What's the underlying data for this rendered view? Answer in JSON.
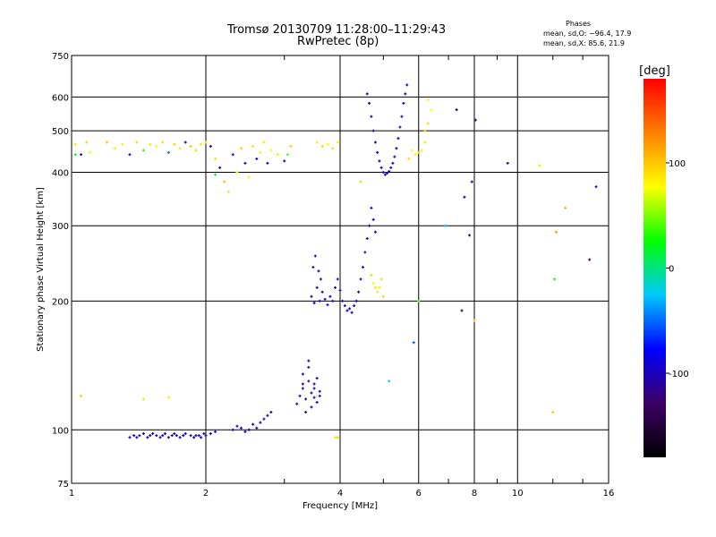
{
  "chart_data": {
    "type": "scatter",
    "title": "Tromsø 20130709 11:28:00–11:29:43",
    "subtitle": "RwPretec (8p)",
    "xlabel": "Frequency [MHz]",
    "ylabel": "Stationary phase Virtual Height [km]",
    "xscale": "log",
    "yscale": "log",
    "xlim": [
      1,
      16
    ],
    "ylim": [
      75,
      750
    ],
    "xticks": [
      1,
      2,
      4,
      6,
      8,
      10,
      16
    ],
    "xtick_labels": [
      "1",
      "2",
      "4",
      "6",
      "8",
      "10",
      "16"
    ],
    "yticks": [
      75,
      100,
      200,
      300,
      400,
      500,
      600,
      750
    ],
    "ytick_labels": [
      "75",
      "100",
      "200",
      "300",
      "400",
      "500",
      "600",
      "750"
    ],
    "grid": true,
    "colorbar": {
      "label": "[deg]",
      "range": [
        -180,
        180
      ],
      "ticks": [
        100,
        0,
        -100
      ],
      "tick_labels": [
        "100",
        "0",
        "-100"
      ],
      "stops": [
        "#000000",
        "#3d0066",
        "#0000ff",
        "#00c8ff",
        "#00ff00",
        "#ffff00",
        "#ff8000",
        "#ff0000"
      ]
    },
    "phases_box": {
      "title": "Phases",
      "line_O": "mean, sd,O: −96.4, 17.9",
      "line_X": "mean, sd,X:  85.6, 21.9"
    },
    "series": [
      {
        "f": [
          1.35,
          1.38,
          1.4,
          1.42,
          1.45,
          1.48,
          1.5,
          1.52,
          1.55,
          1.58,
          1.6,
          1.62,
          1.65,
          1.68,
          1.7,
          1.72,
          1.75,
          1.78,
          1.8,
          1.85,
          1.88,
          1.9,
          1.93,
          1.95,
          1.98,
          2.0,
          2.05,
          2.1
        ],
        "h": [
          96,
          97,
          96,
          97,
          98,
          96,
          97,
          98,
          97,
          96,
          97,
          98,
          96,
          97,
          98,
          97,
          96,
          97,
          98,
          97,
          96,
          97,
          97,
          96,
          98,
          97,
          98,
          99
        ],
        "p": [
          -95,
          -100,
          -90,
          -105,
          -98,
          -92,
          -110,
          -96,
          -94,
          -102,
          -99,
          -88,
          -97,
          -103,
          -95,
          -100,
          -93,
          -106,
          -98,
          -101,
          -94,
          -99,
          -97,
          -92,
          -104,
          -96,
          -98,
          -90
        ]
      },
      {
        "f": [
          2.3,
          2.35,
          2.4,
          2.45,
          2.5,
          2.55,
          2.6,
          2.65,
          2.7,
          2.75,
          2.8
        ],
        "h": [
          100,
          102,
          101,
          99,
          100,
          103,
          101,
          104,
          106,
          108,
          110
        ],
        "p": [
          -100,
          -95,
          -105,
          -98,
          -102,
          -94,
          -99,
          -97,
          -101,
          -96,
          -100
        ]
      },
      {
        "f": [
          3.2,
          3.25,
          3.3,
          3.35,
          3.4,
          3.45,
          3.5,
          3.55,
          3.6,
          3.3,
          3.4,
          3.5,
          3.35,
          3.45,
          3.55,
          3.3,
          3.4,
          3.5,
          3.6
        ],
        "h": [
          115,
          120,
          125,
          118,
          130,
          122,
          128,
          116,
          120,
          135,
          140,
          125,
          110,
          113,
          132,
          128,
          145,
          119,
          123
        ],
        "p": [
          -110,
          -100,
          -95,
          -120,
          -105,
          -98,
          -112,
          -100,
          -95,
          -108,
          -115,
          -100,
          -122,
          -96,
          -104,
          -110,
          -99,
          -106,
          -101
        ]
      },
      {
        "f": [
          3.45,
          3.5,
          3.55,
          3.6,
          3.65,
          3.7,
          3.75,
          3.8,
          3.85,
          3.9,
          3.95,
          4.0,
          4.05,
          4.1,
          4.15,
          4.2,
          4.25,
          4.3,
          4.35,
          4.4,
          4.45,
          4.5,
          4.55,
          4.6,
          4.65,
          4.7,
          4.75,
          4.8
        ],
        "h": [
          205,
          198,
          215,
          200,
          210,
          202,
          196,
          205,
          200,
          215,
          225,
          212,
          200,
          195,
          190,
          192,
          188,
          195,
          200,
          210,
          225,
          240,
          260,
          280,
          300,
          330,
          310,
          290
        ],
        "p": [
          -100,
          -95,
          -110,
          -98,
          -105,
          -92,
          -100,
          -97,
          -102,
          -99,
          -96,
          -104,
          -100,
          -95,
          -98,
          -101,
          -97,
          -103,
          -96,
          -99,
          -100,
          -98,
          -104,
          -97,
          -101,
          -95,
          -99,
          -100
        ]
      },
      {
        "f": [
          3.48,
          3.52,
          3.58,
          3.62
        ],
        "h": [
          240,
          255,
          235,
          225
        ],
        "p": [
          -100,
          -98,
          -102,
          -95
        ]
      },
      {
        "f": [
          4.6,
          4.65,
          4.7,
          4.75,
          4.8,
          4.85,
          4.9,
          4.95,
          5.0,
          5.05,
          5.1,
          5.15,
          5.2,
          5.25,
          5.3,
          5.35,
          5.4,
          5.45,
          5.5,
          5.55,
          5.6,
          5.65
        ],
        "h": [
          610,
          580,
          540,
          500,
          470,
          445,
          425,
          410,
          400,
          395,
          398,
          402,
          410,
          420,
          435,
          455,
          480,
          510,
          540,
          580,
          610,
          640
        ],
        "p": [
          -100,
          -98,
          -102,
          -97,
          -101,
          -95,
          -99,
          -100,
          -98,
          -103,
          -96,
          -100,
          -99,
          -101,
          -97,
          -102,
          -98,
          -100,
          -96,
          -103,
          -99,
          -100
        ]
      },
      {
        "f": [
          4.7,
          4.75,
          4.8,
          4.85,
          4.9,
          4.95,
          5.0
        ],
        "h": [
          230,
          220,
          215,
          210,
          215,
          225,
          205
        ],
        "p": [
          60,
          75,
          90,
          70,
          85,
          65,
          95
        ]
      },
      {
        "f": [
          5.7,
          5.8,
          5.9,
          6.0,
          6.1,
          6.2,
          6.3,
          6.4,
          6.2,
          6.3
        ],
        "h": [
          430,
          450,
          440,
          445,
          450,
          470,
          520,
          560,
          500,
          590
        ],
        "p": [
          90,
          80,
          85,
          95,
          70,
          88,
          92,
          75,
          100,
          85
        ]
      },
      {
        "f": [
          1.02,
          1.05,
          1.08,
          1.1,
          1.2,
          1.25,
          1.3,
          1.35,
          1.4,
          1.45,
          1.5,
          1.55,
          1.6,
          1.65,
          1.7,
          1.75,
          1.8,
          1.85,
          1.9,
          1.95,
          2.0
        ],
        "h": [
          465,
          440,
          470,
          445,
          470,
          455,
          465,
          440,
          470,
          450,
          465,
          460,
          470,
          445,
          465,
          455,
          470,
          460,
          450,
          465,
          470
        ],
        "p": [
          90,
          -100,
          95,
          80,
          100,
          70,
          85,
          -90,
          92,
          30,
          88,
          75,
          90,
          -50,
          95,
          85,
          -105,
          100,
          60,
          88,
          92
        ]
      },
      {
        "f": [
          2.05,
          2.1,
          2.15,
          2.2,
          2.25,
          2.3,
          2.35,
          2.4,
          2.45,
          2.5,
          2.55,
          2.6,
          2.65,
          2.7,
          2.75,
          2.8,
          2.9,
          3.0,
          3.1
        ],
        "h": [
          460,
          430,
          410,
          380,
          360,
          440,
          400,
          455,
          420,
          390,
          460,
          430,
          445,
          470,
          420,
          450,
          440,
          425,
          460
        ],
        "p": [
          -100,
          90,
          -95,
          100,
          85,
          -90,
          70,
          95,
          -100,
          80,
          92,
          -95,
          85,
          90,
          -80,
          75,
          88,
          -100,
          95
        ]
      },
      {
        "f": [
          3.55,
          3.65,
          3.75,
          3.85,
          3.95
        ],
        "h": [
          470,
          460,
          465,
          455,
          470
        ],
        "p": [
          85,
          95,
          80,
          90,
          88
        ]
      },
      {
        "f": [
          1.05,
          1.45,
          1.65,
          3.9,
          3.95,
          4.45,
          5.15,
          5.85,
          6.0,
          7.3,
          7.5,
          7.6,
          7.8,
          7.9,
          8.0,
          8.05,
          9.5,
          11.2,
          12.0,
          12.1,
          12.2,
          12.8,
          14.5
        ],
        "h": [
          120,
          118,
          119,
          96,
          96,
          380,
          130,
          160,
          200,
          560,
          190,
          350,
          285,
          380,
          180,
          530,
          420,
          415,
          110,
          225,
          290,
          330,
          250
        ],
        "p": [
          95,
          90,
          85,
          90,
          95,
          60,
          -20,
          -60,
          40,
          -150,
          -110,
          -100,
          -130,
          -100,
          100,
          -100,
          -130,
          88,
          100,
          30,
          120,
          110,
          -120
        ]
      },
      {
        "f": [
          15.0,
          1.02,
          2.1,
          3.05,
          6.9
        ],
        "h": [
          370,
          440,
          395,
          440,
          300
        ],
        "p": [
          -90,
          20,
          10,
          40,
          -30
        ]
      }
    ]
  }
}
